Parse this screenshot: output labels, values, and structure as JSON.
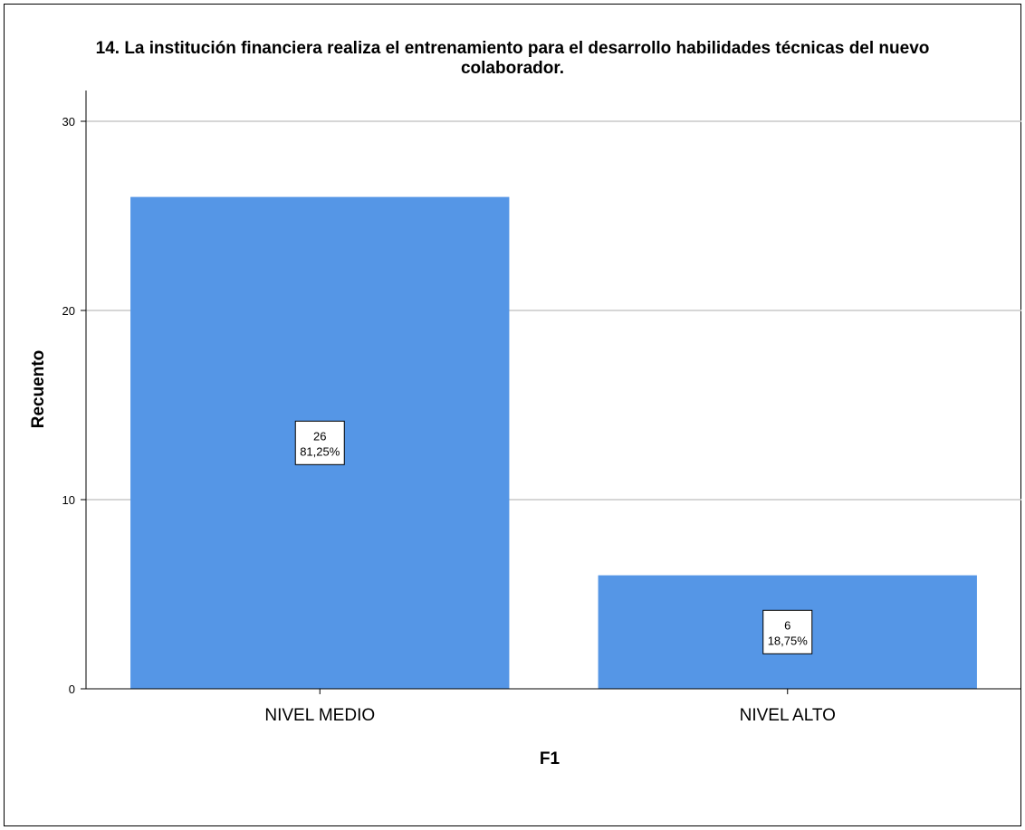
{
  "chart_data": {
    "type": "bar",
    "title_lines": [
      "14. La institución financiera realiza el entrenamiento para el desarrollo habilidades técnicas del nuevo",
      "colaborador."
    ],
    "xlabel": "F1",
    "ylabel": "Recuento",
    "categories": [
      "NIVEL MEDIO",
      "NIVEL ALTO"
    ],
    "values": [
      26,
      6
    ],
    "data_labels": [
      {
        "count": "26",
        "percent": "81,25%"
      },
      {
        "count": "6",
        "percent": "18,75%"
      }
    ],
    "y_ticks": [
      0,
      10,
      20,
      30
    ],
    "ylim": [
      0,
      31.5
    ],
    "grid": true,
    "bar_color": "#5596e6"
  }
}
